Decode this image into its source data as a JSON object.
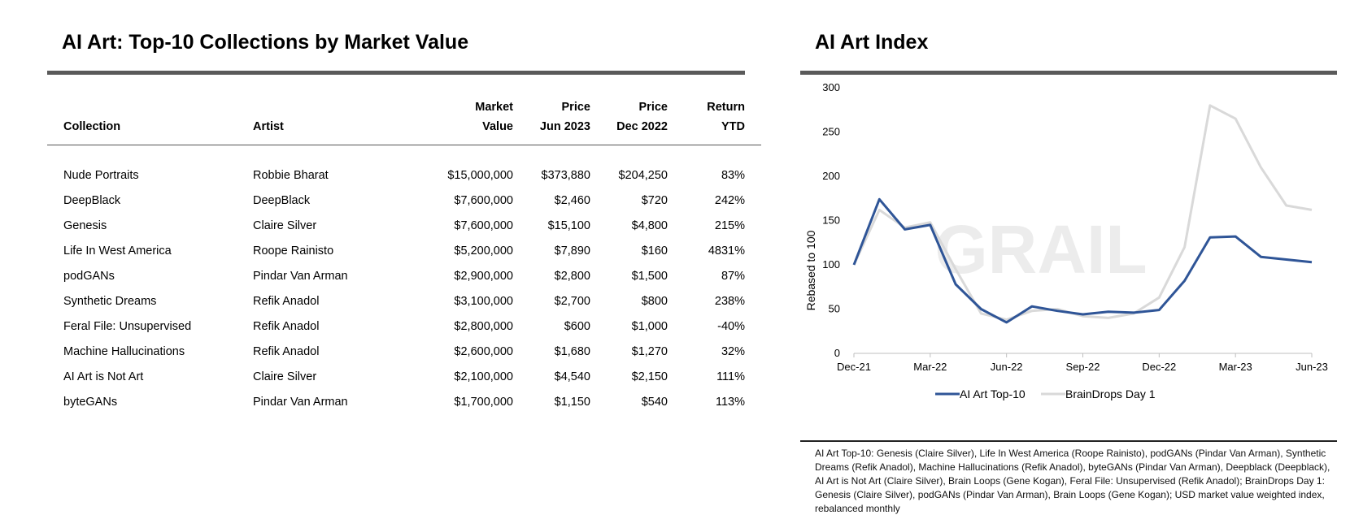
{
  "table_title": "AI Art: Top-10 Collections by Market Value",
  "chart_title": "AI Art Index",
  "table": {
    "headers": [
      {
        "line1": "",
        "line2": "Collection"
      },
      {
        "line1": "",
        "line2": "Artist"
      },
      {
        "line1": "Market",
        "line2": "Value"
      },
      {
        "line1": "Price",
        "line2": "Jun 2023"
      },
      {
        "line1": "Price",
        "line2": "Dec 2022"
      },
      {
        "line1": "Return",
        "line2": "YTD"
      }
    ],
    "rows": [
      [
        "Nude Portraits",
        "Robbie Bharat",
        "$15,000,000",
        "$373,880",
        "$204,250",
        "83%"
      ],
      [
        "DeepBlack",
        "DeepBlack",
        "$7,600,000",
        "$2,460",
        "$720",
        "242%"
      ],
      [
        "Genesis",
        "Claire Silver",
        "$7,600,000",
        "$15,100",
        "$4,800",
        "215%"
      ],
      [
        "Life In West America",
        "Roope Rainisto",
        "$5,200,000",
        "$7,890",
        "$160",
        "4831%"
      ],
      [
        "podGANs",
        "Pindar Van Arman",
        "$2,900,000",
        "$2,800",
        "$1,500",
        "87%"
      ],
      [
        "Synthetic Dreams",
        "Refik Anadol",
        "$3,100,000",
        "$2,700",
        "$800",
        "238%"
      ],
      [
        "Feral File: Unsupervised",
        "Refik Anadol",
        "$2,800,000",
        "$600",
        "$1,000",
        "-40%"
      ],
      [
        "Machine Hallucinations",
        "Refik Anadol",
        "$2,600,000",
        "$1,680",
        "$1,270",
        "32%"
      ],
      [
        "AI Art is Not Art",
        "Claire Silver",
        "$2,100,000",
        "$4,540",
        "$2,150",
        "111%"
      ],
      [
        "byteGANs",
        "Pindar Van Arman",
        "$1,700,000",
        "$1,150",
        "$540",
        "113%"
      ]
    ]
  },
  "chart_data": {
    "type": "line",
    "title": "AI Art Index",
    "xlabel": "",
    "ylabel": "Rebased to 100",
    "ylim": [
      0,
      300
    ],
    "yticks": [
      0,
      50,
      100,
      150,
      200,
      250,
      300
    ],
    "x": [
      "Dec-21",
      "Jan-22",
      "Feb-22",
      "Mar-22",
      "Apr-22",
      "May-22",
      "Jun-22",
      "Jul-22",
      "Aug-22",
      "Sep-22",
      "Oct-22",
      "Nov-22",
      "Dec-22",
      "Jan-23",
      "Feb-23",
      "Mar-23",
      "Apr-23",
      "May-23",
      "Jun-23"
    ],
    "xtick_labels": [
      "Dec-21",
      "Mar-22",
      "Jun-22",
      "Sep-22",
      "Dec-22",
      "Mar-23",
      "Jun-23"
    ],
    "xtick_positions": [
      0,
      3,
      6,
      9,
      12,
      15,
      18
    ],
    "grid": false,
    "legend": "bottom",
    "series": [
      {
        "name": "AI Art Top-10",
        "color": "#2f5597",
        "values": [
          100,
          174,
          140,
          145,
          78,
          50,
          35,
          53,
          48,
          44,
          47,
          46,
          49,
          82,
          131,
          132,
          109,
          106,
          103
        ]
      },
      {
        "name": "BrainDrops Day 1",
        "color": "#d9d9d9",
        "values": [
          100,
          162,
          142,
          148,
          95,
          45,
          38,
          48,
          50,
          42,
          40,
          45,
          63,
          120,
          280,
          265,
          210,
          167,
          162
        ]
      }
    ]
  },
  "footnote": "AI Art Top-10: Genesis (Claire Silver), Life In West America (Roope Rainisto), podGANs (Pindar Van Arman), Synthetic Dreams (Refik Anadol), Machine Hallucinations (Refik Anadol), byteGANs (Pindar Van Arman), Deepblack (Deepblack), AI Art is Not Art (Claire Silver), Brain Loops (Gene Kogan), Feral File: Unsupervised (Refik Anadol); BrainDrops Day 1: Genesis (Claire Silver), podGANs (Pindar Van Arman), Brain Loops (Gene Kogan); USD market value weighted index, rebalanced monthly"
}
